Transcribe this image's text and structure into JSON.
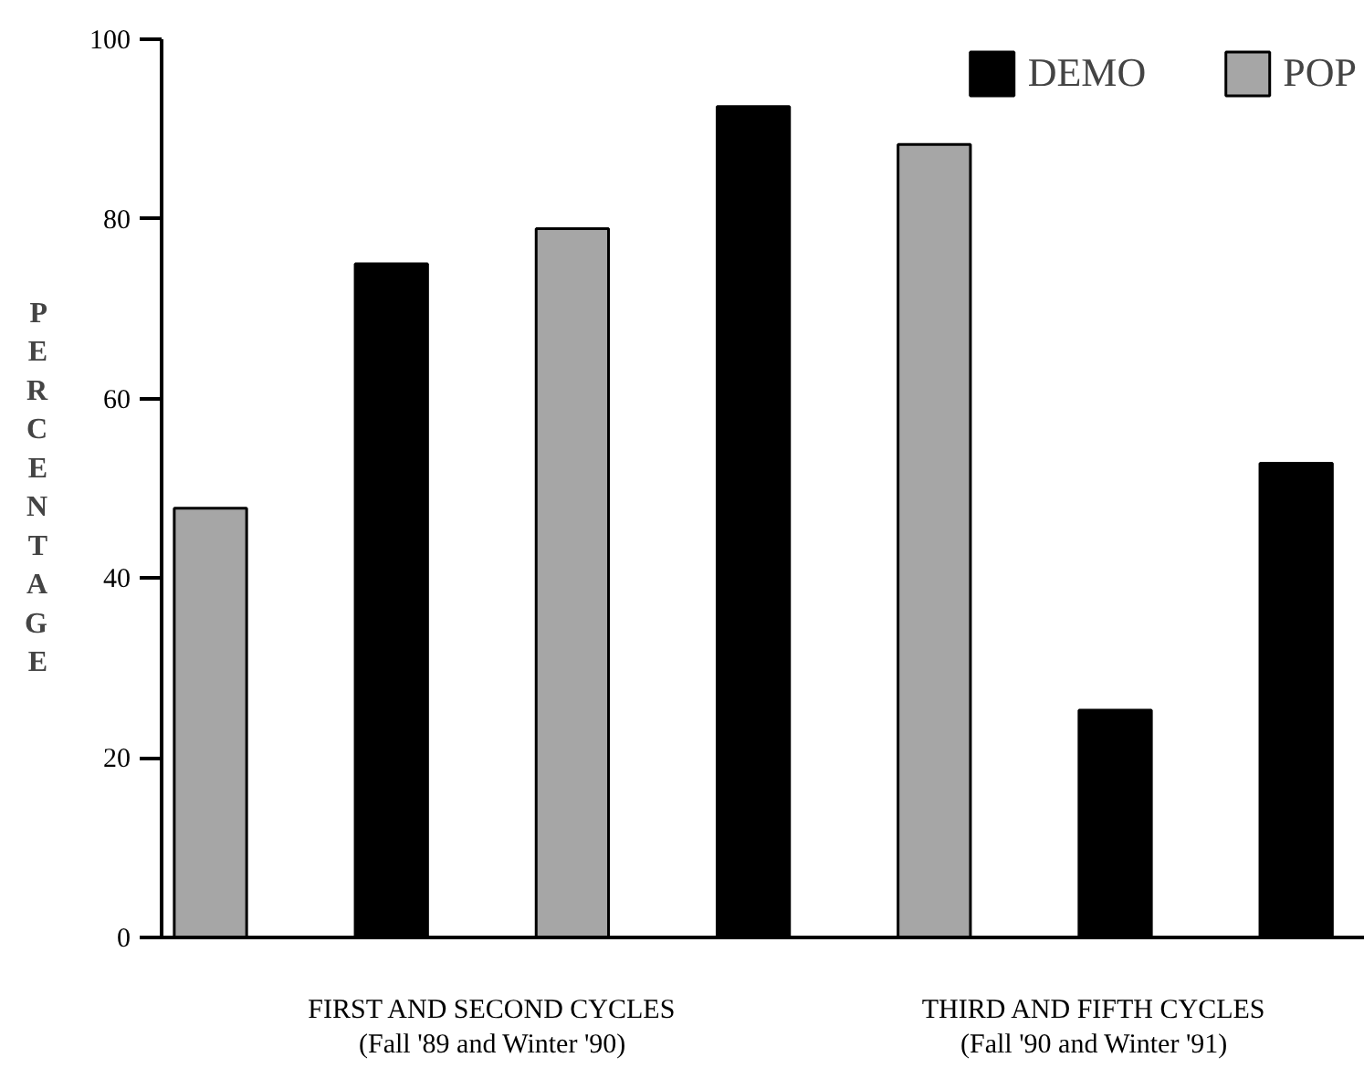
{
  "chart_data": {
    "type": "bar",
    "ylabel": "PERCENTAGE",
    "categories": [
      null,
      null,
      null,
      null,
      null,
      null,
      null
    ],
    "series": [
      {
        "name": "DEMO",
        "color": "#000000",
        "values": [
          null,
          75,
          null,
          92.5,
          null,
          25.3,
          52.8
        ]
      },
      {
        "name": "POP",
        "color": "#a6a6a6",
        "values": [
          47.8,
          null,
          78.9,
          null,
          88.3,
          null,
          null
        ]
      }
    ],
    "ylim": [
      0,
      100
    ],
    "yticks": [
      0,
      20,
      40,
      60,
      80,
      100
    ],
    "grid": false,
    "legend": "top right",
    "annotations": [
      "FIRST AND SECOND CYCLES\n(Fall '89 and Winter '90)",
      "THIRD AND FIFTH CYCLES\n(Fall '90 and Winter '91)"
    ]
  }
}
